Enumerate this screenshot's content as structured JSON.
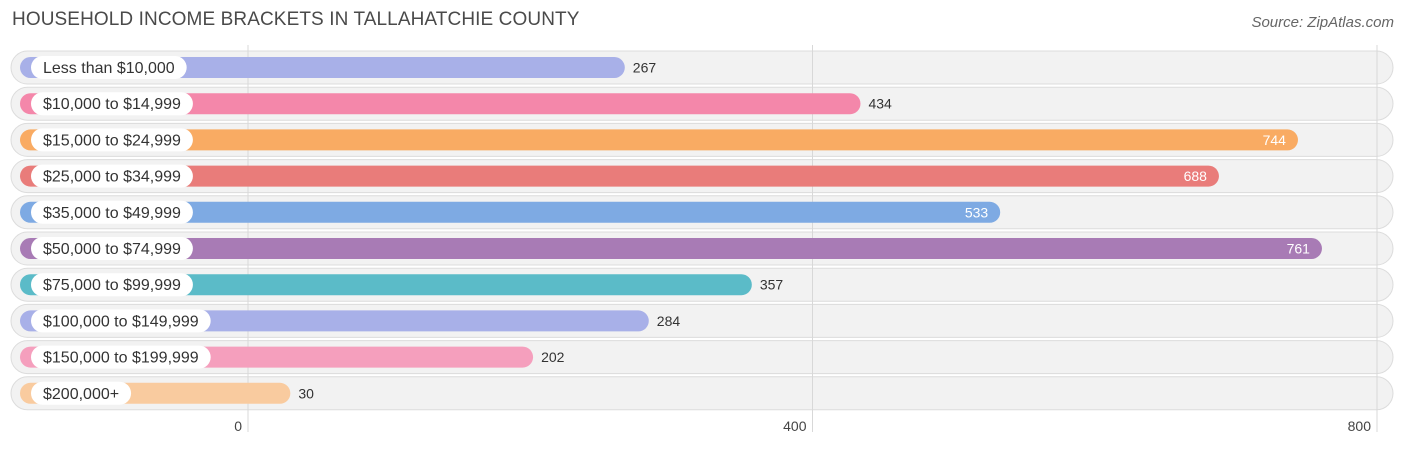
{
  "title": "HOUSEHOLD INCOME BRACKETS IN TALLAHATCHIE COUNTY",
  "source": "Source: ZipAtlas.com",
  "chart_data": {
    "type": "bar",
    "orientation": "horizontal",
    "categories": [
      "Less than $10,000",
      "$10,000 to $14,999",
      "$15,000 to $24,999",
      "$25,000 to $34,999",
      "$35,000 to $49,999",
      "$50,000 to $74,999",
      "$75,000 to $99,999",
      "$100,000 to $149,999",
      "$150,000 to $199,999",
      "$200,000+"
    ],
    "values": [
      267,
      434,
      744,
      688,
      533,
      761,
      357,
      284,
      202,
      30
    ],
    "colors": [
      "#a8b0e8",
      "#f487aa",
      "#f9ab63",
      "#e97c7a",
      "#7eaae3",
      "#a87bb5",
      "#5bbbc8",
      "#a8b0e8",
      "#f59fbd",
      "#f9cb9f"
    ],
    "ticks": [
      0,
      400,
      800
    ],
    "tick_labels": [
      "0",
      "400",
      "800"
    ],
    "xlim": [
      0,
      800
    ],
    "grid": true
  }
}
